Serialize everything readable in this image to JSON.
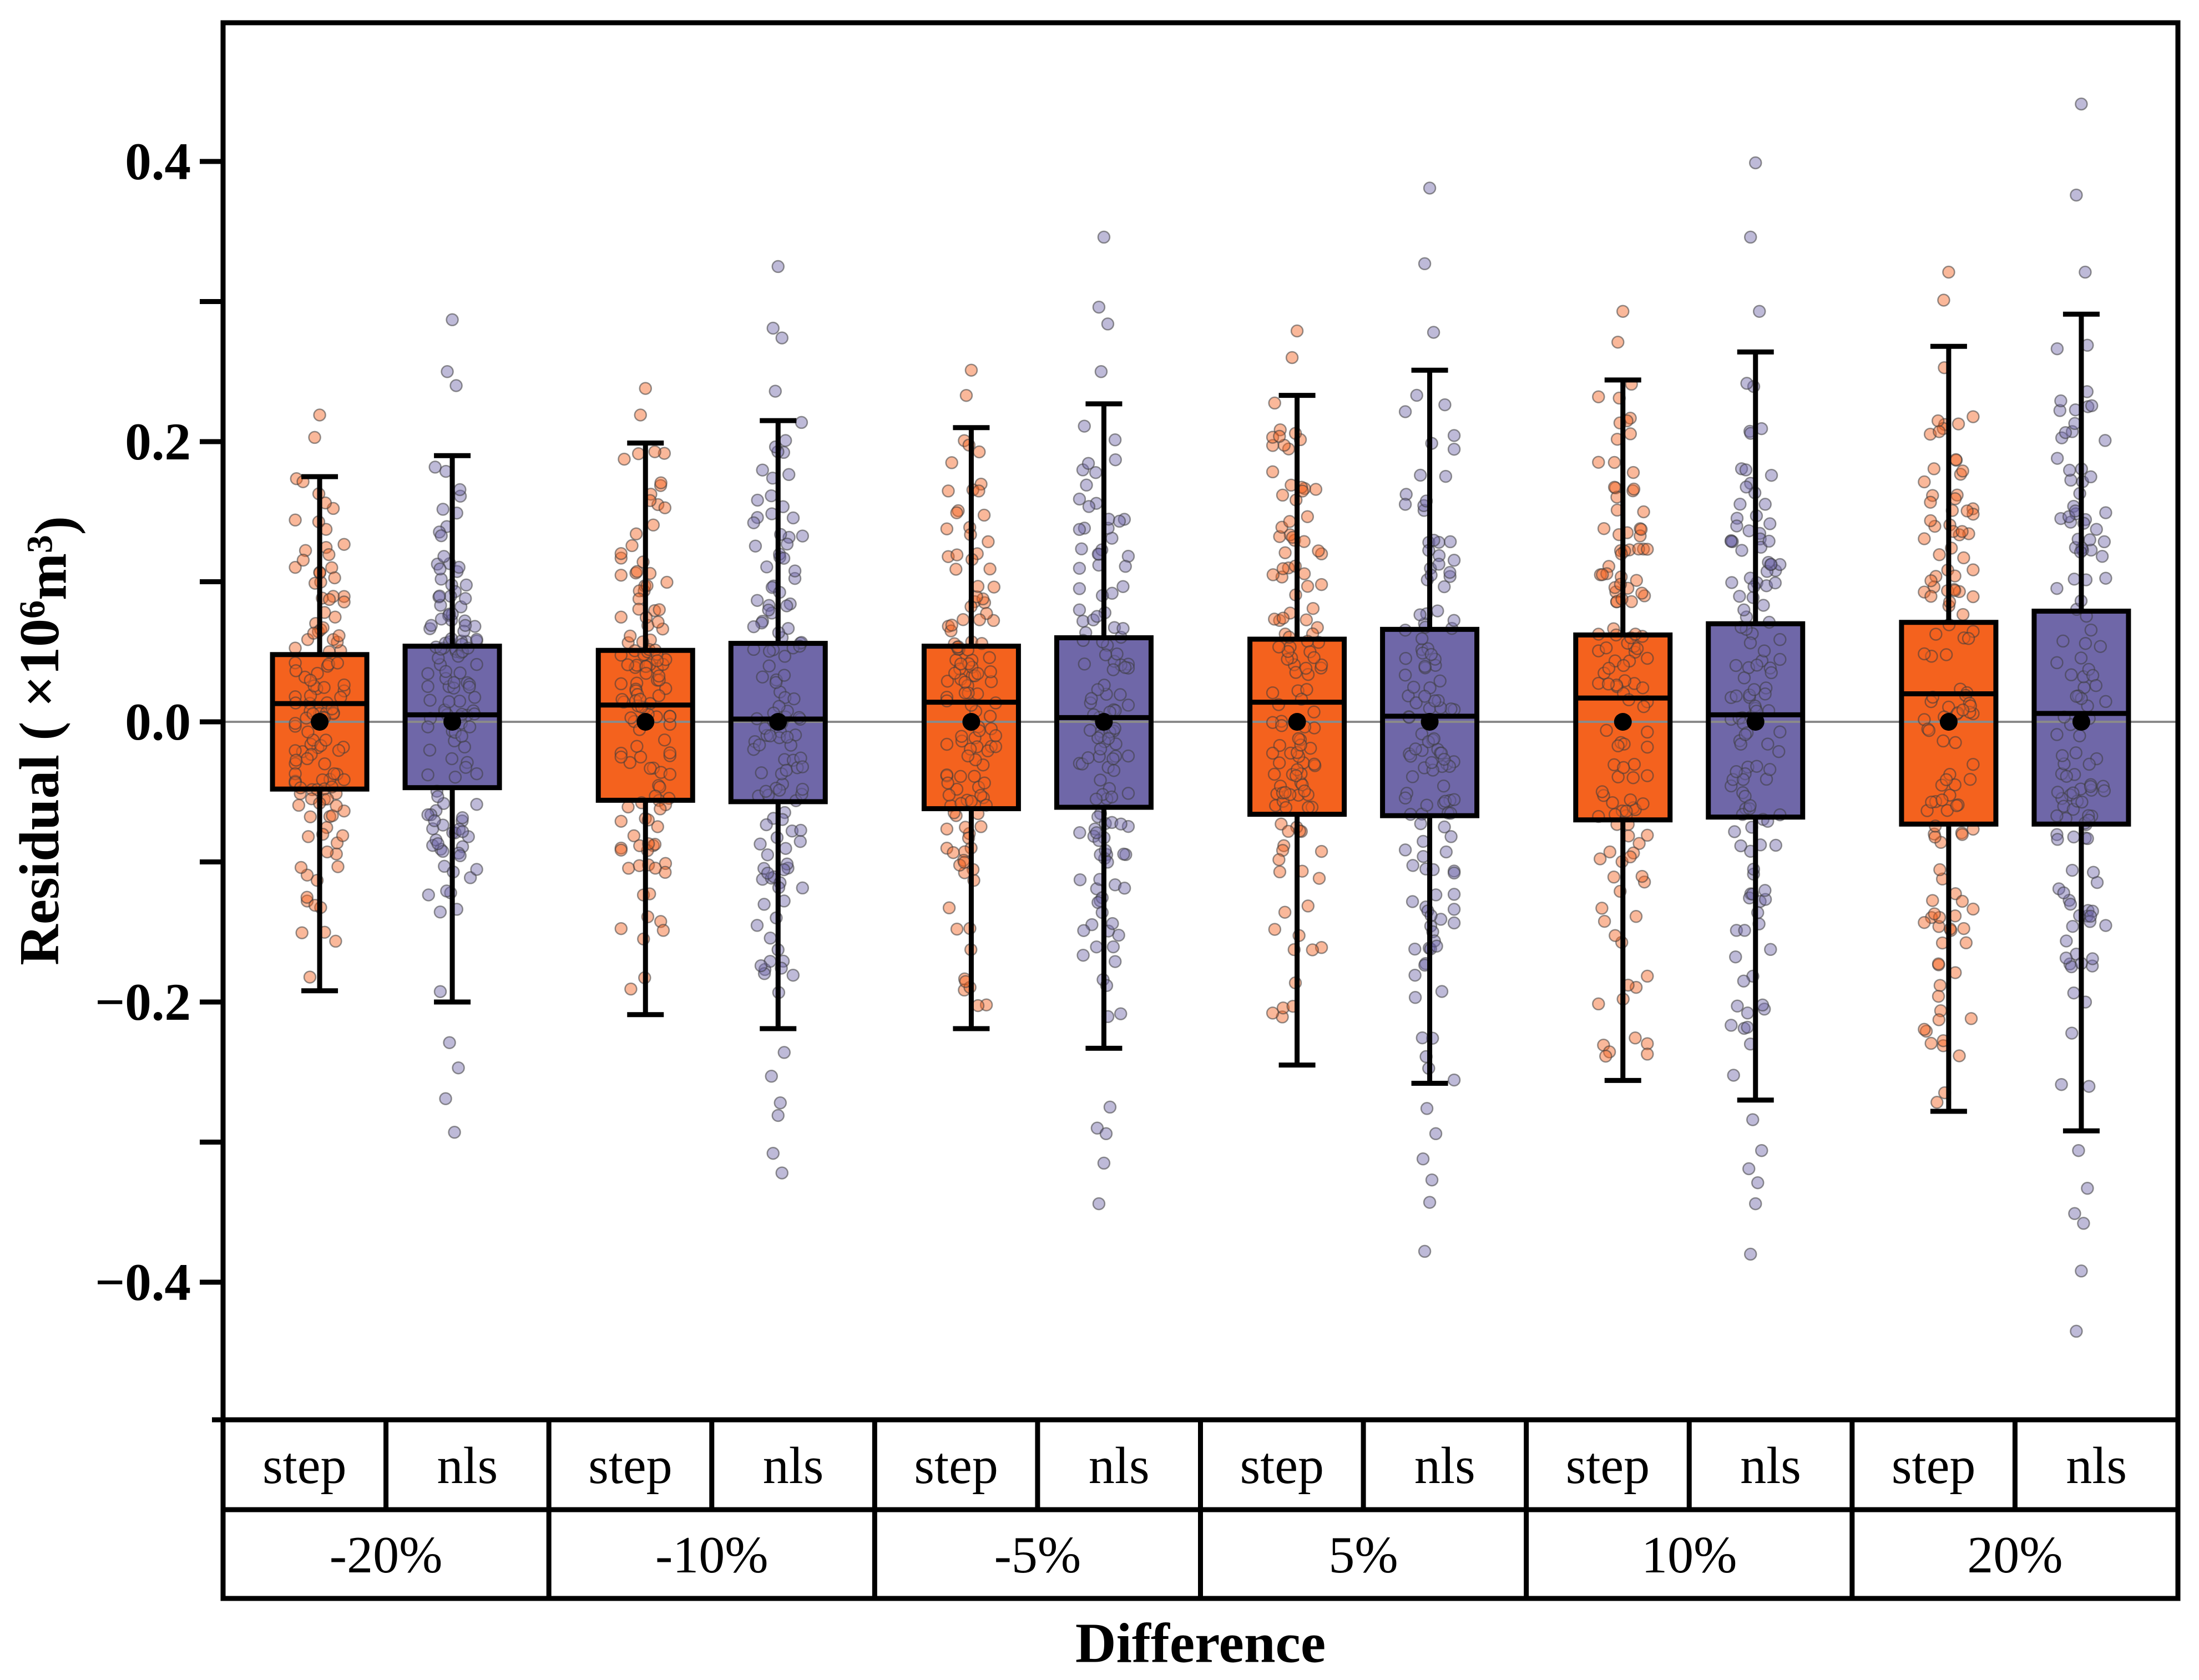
{
  "page": {
    "background": "#FFFFFF"
  },
  "y_axis": {
    "title_plain": "Residual ( ×10⁶m³)",
    "title_parts": {
      "prefix": "Residual ( ×10",
      "sup1": "6",
      "mid": "m",
      "sup2": "3",
      "suffix": ")"
    },
    "major_ticks": [
      {
        "value": 0.4,
        "label": "0.4"
      },
      {
        "value": 0.2,
        "label": "0.2"
      },
      {
        "value": 0.0,
        "label": "0.0"
      },
      {
        "value": -0.2,
        "label": "−0.2"
      },
      {
        "value": -0.4,
        "label": "−0.4"
      }
    ],
    "minor_ticks": [
      0.3,
      0.1,
      -0.1,
      -0.3
    ]
  },
  "x_axis": {
    "title": "Difference",
    "series_labels": [
      "step",
      "nls"
    ],
    "group_labels": [
      "-20%",
      "-10%",
      "-5%",
      "5%",
      "10%",
      "20%"
    ]
  },
  "style": {
    "step_color": "#F4621E",
    "nls_color": "#6F67A8",
    "point_stroke": "#3C3C3C",
    "frame_color": "#000000",
    "zero_line_color": "#8A8A8A",
    "mean_dot_color": "#000000"
  },
  "chart_data": {
    "type": "boxplot",
    "title": "",
    "xlabel": "Difference",
    "ylabel": "Residual (×10^6 m^3)",
    "ylim": [
      -0.5,
      0.5
    ],
    "zero_reference_line": 0.0,
    "grid": "off",
    "categories": [
      "-20%",
      "-10%",
      "-5%",
      "5%",
      "10%",
      "20%"
    ],
    "series": [
      {
        "name": "step",
        "color": "#F4621E",
        "boxes": [
          {
            "group": "-20%",
            "whisker_low": -0.192,
            "q1": -0.048,
            "median": 0.013,
            "q3": 0.048,
            "whisker_high": 0.175,
            "mean": 0.0,
            "outliers_high": [
              0.219,
              0.203
            ],
            "outliers_low": [],
            "n_points_approx": 130
          },
          {
            "group": "-10%",
            "whisker_low": -0.209,
            "q1": -0.056,
            "median": 0.012,
            "q3": 0.051,
            "whisker_high": 0.199,
            "mean": 0.0,
            "outliers_high": [
              0.238,
              0.219
            ],
            "outliers_low": [],
            "n_points_approx": 130
          },
          {
            "group": "-5%",
            "whisker_low": -0.219,
            "q1": -0.062,
            "median": 0.014,
            "q3": 0.054,
            "whisker_high": 0.21,
            "mean": 0.0,
            "outliers_high": [
              0.251,
              0.233
            ],
            "outliers_low": [],
            "n_points_approx": 130
          },
          {
            "group": "5%",
            "whisker_low": -0.245,
            "q1": -0.066,
            "median": 0.014,
            "q3": 0.059,
            "whisker_high": 0.233,
            "mean": 0.0,
            "outliers_high": [
              0.279,
              0.26
            ],
            "outliers_low": [],
            "n_points_approx": 130
          },
          {
            "group": "10%",
            "whisker_low": -0.256,
            "q1": -0.07,
            "median": 0.017,
            "q3": 0.062,
            "whisker_high": 0.244,
            "mean": 0.0,
            "outliers_high": [
              0.293,
              0.271
            ],
            "outliers_low": [],
            "n_points_approx": 130
          },
          {
            "group": "20%",
            "whisker_low": -0.278,
            "q1": -0.073,
            "median": 0.02,
            "q3": 0.071,
            "whisker_high": 0.268,
            "mean": 0.0,
            "outliers_high": [
              0.321,
              0.301
            ],
            "outliers_low": [],
            "n_points_approx": 130
          }
        ]
      },
      {
        "name": "nls",
        "color": "#6F67A8",
        "boxes": [
          {
            "group": "-20%",
            "whisker_low": -0.2,
            "q1": -0.047,
            "median": 0.005,
            "q3": 0.054,
            "whisker_high": 0.19,
            "mean": 0.0,
            "outliers_high": [
              0.287,
              0.25,
              0.24
            ],
            "outliers_low": [
              -0.229,
              -0.247,
              -0.269,
              -0.293
            ],
            "n_points_approx": 130
          },
          {
            "group": "-10%",
            "whisker_low": -0.219,
            "q1": -0.057,
            "median": 0.002,
            "q3": 0.056,
            "whisker_high": 0.215,
            "mean": 0.0,
            "outliers_high": [
              0.325,
              0.281,
              0.274,
              0.236
            ],
            "outliers_low": [
              -0.236,
              -0.253,
              -0.272,
              -0.281,
              -0.308,
              -0.322
            ],
            "n_points_approx": 130
          },
          {
            "group": "-5%",
            "whisker_low": -0.233,
            "q1": -0.061,
            "median": 0.003,
            "q3": 0.06,
            "whisker_high": 0.227,
            "mean": 0.0,
            "outliers_high": [
              0.346,
              0.296,
              0.284,
              0.25
            ],
            "outliers_low": [
              -0.275,
              -0.29,
              -0.294,
              -0.315,
              -0.344
            ],
            "n_points_approx": 130
          },
          {
            "group": "5%",
            "whisker_low": -0.258,
            "q1": -0.067,
            "median": 0.004,
            "q3": 0.066,
            "whisker_high": 0.251,
            "mean": 0.0,
            "outliers_high": [
              0.381,
              0.327,
              0.278
            ],
            "outliers_low": [
              -0.276,
              -0.294,
              -0.312,
              -0.327,
              -0.343,
              -0.378
            ],
            "n_points_approx": 130
          },
          {
            "group": "10%",
            "whisker_low": -0.27,
            "q1": -0.068,
            "median": 0.005,
            "q3": 0.07,
            "whisker_high": 0.264,
            "mean": 0.0,
            "outliers_high": [
              0.399,
              0.346,
              0.293
            ],
            "outliers_low": [
              -0.284,
              -0.306,
              -0.319,
              -0.329,
              -0.344,
              -0.38
            ],
            "n_points_approx": 130
          },
          {
            "group": "20%",
            "whisker_low": -0.292,
            "q1": -0.073,
            "median": 0.006,
            "q3": 0.079,
            "whisker_high": 0.291,
            "mean": 0.0,
            "outliers_high": [
              0.441,
              0.376,
              0.321
            ],
            "outliers_low": [
              -0.306,
              -0.333,
              -0.351,
              -0.358,
              -0.392,
              -0.435
            ],
            "n_points_approx": 130
          }
        ]
      }
    ],
    "legend_position": "none"
  }
}
